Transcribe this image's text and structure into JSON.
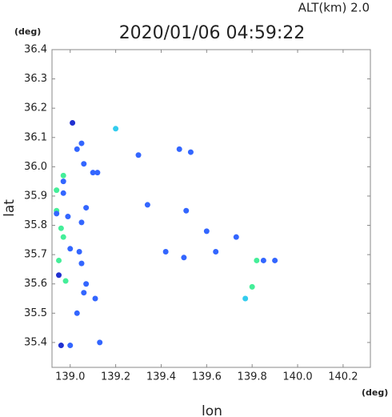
{
  "chart_data": {
    "type": "scatter",
    "title": "2020/01/06 04:59:22",
    "subtitle": "ALT(km)  2.0",
    "y_unit": "(deg)",
    "x_unit": "(deg)",
    "x_label": "lon",
    "y_label": "lat",
    "xlim": [
      138.92,
      140.32
    ],
    "ylim": [
      35.315,
      36.4
    ],
    "xticks": [
      {
        "value": 139.0,
        "label": "139.0"
      },
      139.2,
      139.4,
      139.6,
      139.8,
      {
        "value": 140.0,
        "label": "140.0"
      },
      140.2
    ],
    "yticks": [
      36.4,
      36.3,
      36.2,
      36.1,
      {
        "value": 36.0,
        "label": "36.0"
      },
      35.9,
      35.8,
      35.7,
      35.6,
      35.5,
      35.4
    ],
    "x": [
      139.01,
      139.05,
      139.03,
      139.06,
      138.97,
      138.97,
      138.94,
      138.97,
      138.94,
      138.94,
      139.07,
      138.96,
      138.97,
      138.99,
      139.05,
      139.0,
      139.04,
      138.95,
      139.05,
      138.95,
      138.98,
      139.07,
      139.06,
      139.11,
      139.03,
      138.96,
      139.0,
      139.13,
      139.12,
      139.1,
      139.34,
      139.2,
      139.48,
      139.51,
      139.6,
      139.73,
      139.42,
      139.64,
      139.82,
      139.85,
      139.9,
      139.8,
      139.77,
      139.5,
      139.3,
      139.53
    ],
    "values": [
      36.15,
      36.08,
      36.06,
      36.01,
      35.97,
      35.95,
      35.92,
      35.91,
      35.85,
      35.84,
      35.86,
      35.79,
      35.76,
      35.83,
      35.81,
      35.72,
      35.71,
      35.68,
      35.67,
      35.63,
      35.61,
      35.6,
      35.57,
      35.55,
      35.5,
      35.39,
      35.39,
      35.4,
      35.98,
      35.98,
      35.87,
      36.13,
      36.06,
      35.85,
      35.78,
      35.76,
      35.71,
      35.71,
      35.68,
      35.68,
      35.68,
      35.59,
      35.55,
      35.69,
      36.04,
      36.05
    ],
    "colors": [
      "#2030d0",
      "#3366ff",
      "#3366ff",
      "#3366ff",
      "#44ee99",
      "#3366ff",
      "#44ee99",
      "#3366ff",
      "#44ee99",
      "#3366ff",
      "#3366ff",
      "#44ee99",
      "#44ee99",
      "#3366ff",
      "#3366ff",
      "#3366ff",
      "#3366ff",
      "#44ee99",
      "#3366ff",
      "#2030d0",
      "#44ee99",
      "#3366ff",
      "#3366ff",
      "#3366ff",
      "#3366ff",
      "#2030d0",
      "#3366ff",
      "#3366ff",
      "#3366ff",
      "#3366ff",
      "#3366ff",
      "#33ccee",
      "#3366ff",
      "#3366ff",
      "#3366ff",
      "#3366ff",
      "#3366ff",
      "#3366ff",
      "#44ee99",
      "#3366ff",
      "#3366ff",
      "#44ee99",
      "#33ccee",
      "#3366ff",
      "#3366ff",
      "#3366ff"
    ]
  }
}
